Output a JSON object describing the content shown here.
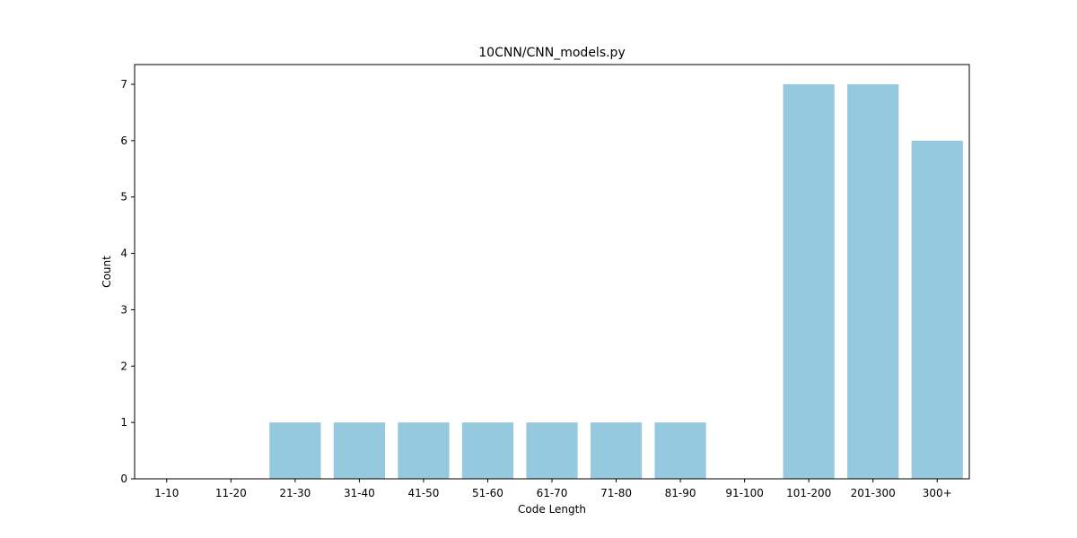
{
  "chart_data": {
    "type": "bar",
    "title": "10CNN/CNN_models.py",
    "xlabel": "Code Length",
    "ylabel": "Count",
    "categories": [
      "1-10",
      "11-20",
      "21-30",
      "31-40",
      "41-50",
      "51-60",
      "61-70",
      "71-80",
      "81-90",
      "91-100",
      "101-200",
      "201-300",
      "300+"
    ],
    "values": [
      0,
      0,
      1,
      1,
      1,
      1,
      1,
      1,
      1,
      0,
      7,
      7,
      6
    ],
    "ylim": [
      0,
      7.35
    ],
    "yticks": [
      0,
      1,
      2,
      3,
      4,
      5,
      6,
      7
    ],
    "grid": false,
    "bar_color": "#96c9de"
  }
}
